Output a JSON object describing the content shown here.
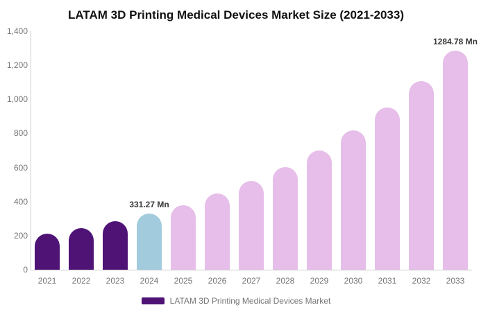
{
  "title": "LATAM 3D Printing Medical Devices Market Size (2021-2033)",
  "legend": {
    "label": "LATAM 3D Printing Medical Devices Market"
  },
  "colors": {
    "historical": "#4F1376",
    "base_year": "#A3CBDE",
    "forecast": "#E6BEE9",
    "axis_line": "#CCCCCC",
    "tick_text": "#757575",
    "data_label_text": "#383838",
    "title_text": "#111111"
  },
  "chart_data": {
    "type": "bar",
    "title": "LATAM 3D Printing Medical Devices Market Size (2021-2033)",
    "unit": "Mn",
    "categories": [
      "2021",
      "2022",
      "2023",
      "2024",
      "2025",
      "2026",
      "2027",
      "2028",
      "2029",
      "2030",
      "2031",
      "2032",
      "2033"
    ],
    "values": [
      210,
      246,
      284,
      331.27,
      380,
      449,
      519,
      601,
      702,
      817,
      952,
      1108,
      1284.78
    ],
    "bar_roles": [
      "historical",
      "historical",
      "historical",
      "base_year",
      "forecast",
      "forecast",
      "forecast",
      "forecast",
      "forecast",
      "forecast",
      "forecast",
      "forecast",
      "forecast"
    ],
    "data_labels": [
      {
        "index": 3,
        "text": "331.27 Mn"
      },
      {
        "index": 12,
        "text": "1284.78 Mn"
      }
    ],
    "yticks": [
      {
        "value": 0,
        "label": "0"
      },
      {
        "value": 200,
        "label": "200"
      },
      {
        "value": 400,
        "label": "400"
      },
      {
        "value": 600,
        "label": "600"
      },
      {
        "value": 800,
        "label": "800"
      },
      {
        "value": 1000,
        "label": "1,000"
      },
      {
        "value": 1200,
        "label": "1,200"
      },
      {
        "value": 1400,
        "label": "1,400"
      }
    ],
    "ylim": [
      0,
      1400
    ],
    "xlabel": "",
    "ylabel": "",
    "grid": false,
    "legend_position": "bottom",
    "legend_entries": [
      "LATAM 3D Printing Medical Devices Market"
    ]
  }
}
